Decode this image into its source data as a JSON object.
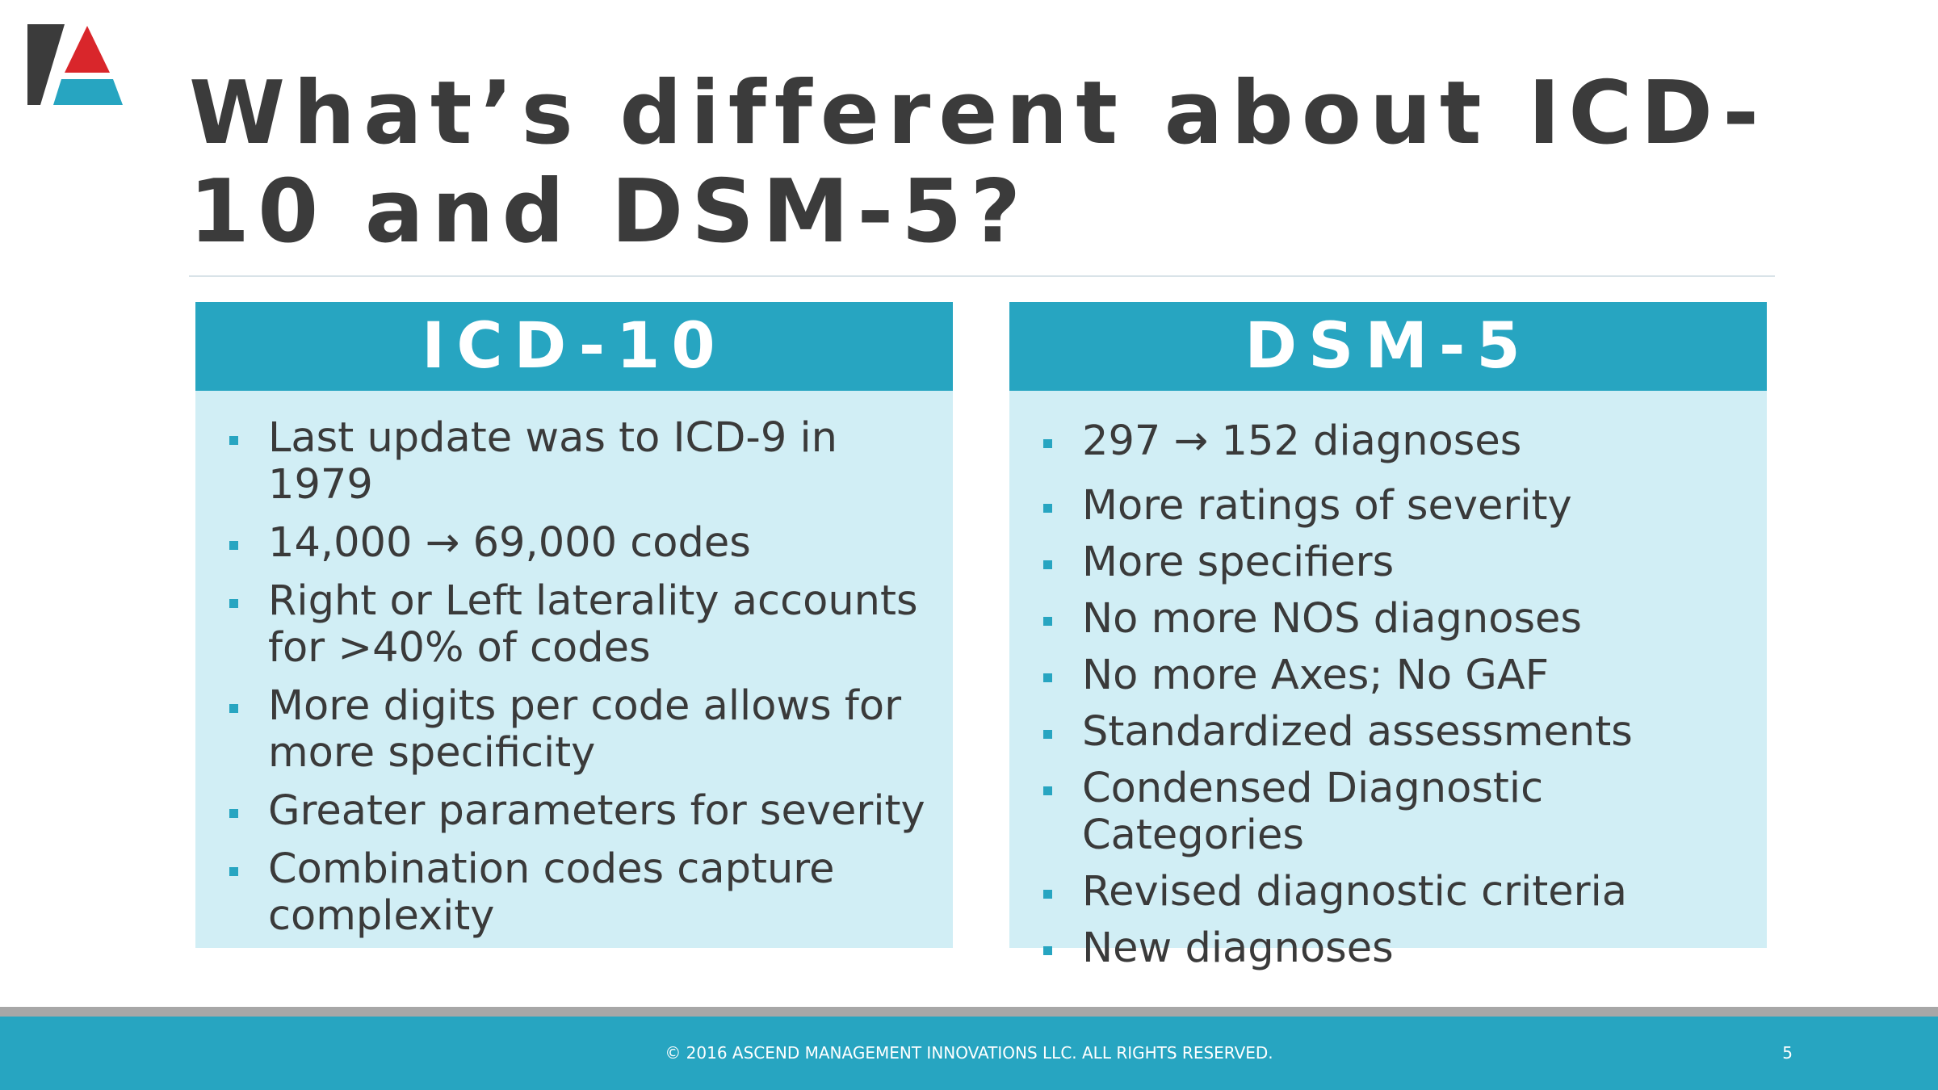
{
  "slide": {
    "title": "What’s different about ICD-10 and DSM-5?",
    "left_column": {
      "heading": "ICD-10",
      "bullets": [
        "Last update was to ICD-9 in 1979",
        "14,000 → 69,000 codes",
        "Right or Left laterality accounts for >40% of codes",
        "More digits per code allows for more specificity",
        "Greater parameters for severity",
        "Combination codes capture complexity"
      ]
    },
    "right_column": {
      "heading": "DSM-5",
      "bullets": [
        "297 → 152 diagnoses",
        "More ratings of severity",
        "More specifiers",
        "No more NOS diagnoses",
        "No more Axes; No GAF",
        "Standardized assessments",
        "Condensed Diagnostic Categories",
        "Revised diagnostic criteria",
        "New diagnoses"
      ]
    }
  },
  "footer": {
    "copyright": "© 2016 ASCEND MANAGEMENT INNOVATIONS LLC. ALL RIGHTS RESERVED.",
    "page_number": "5"
  },
  "colors": {
    "accent": "#27a5c1",
    "panel": "#d1eef5",
    "text": "#3a3a3a",
    "logo_red": "#d9262b",
    "logo_blue": "#27a5c1",
    "logo_dark": "#3b3b3b"
  },
  "icons": {
    "logo": "ascend-logo-icon",
    "bullet": "square-bullet-icon"
  }
}
